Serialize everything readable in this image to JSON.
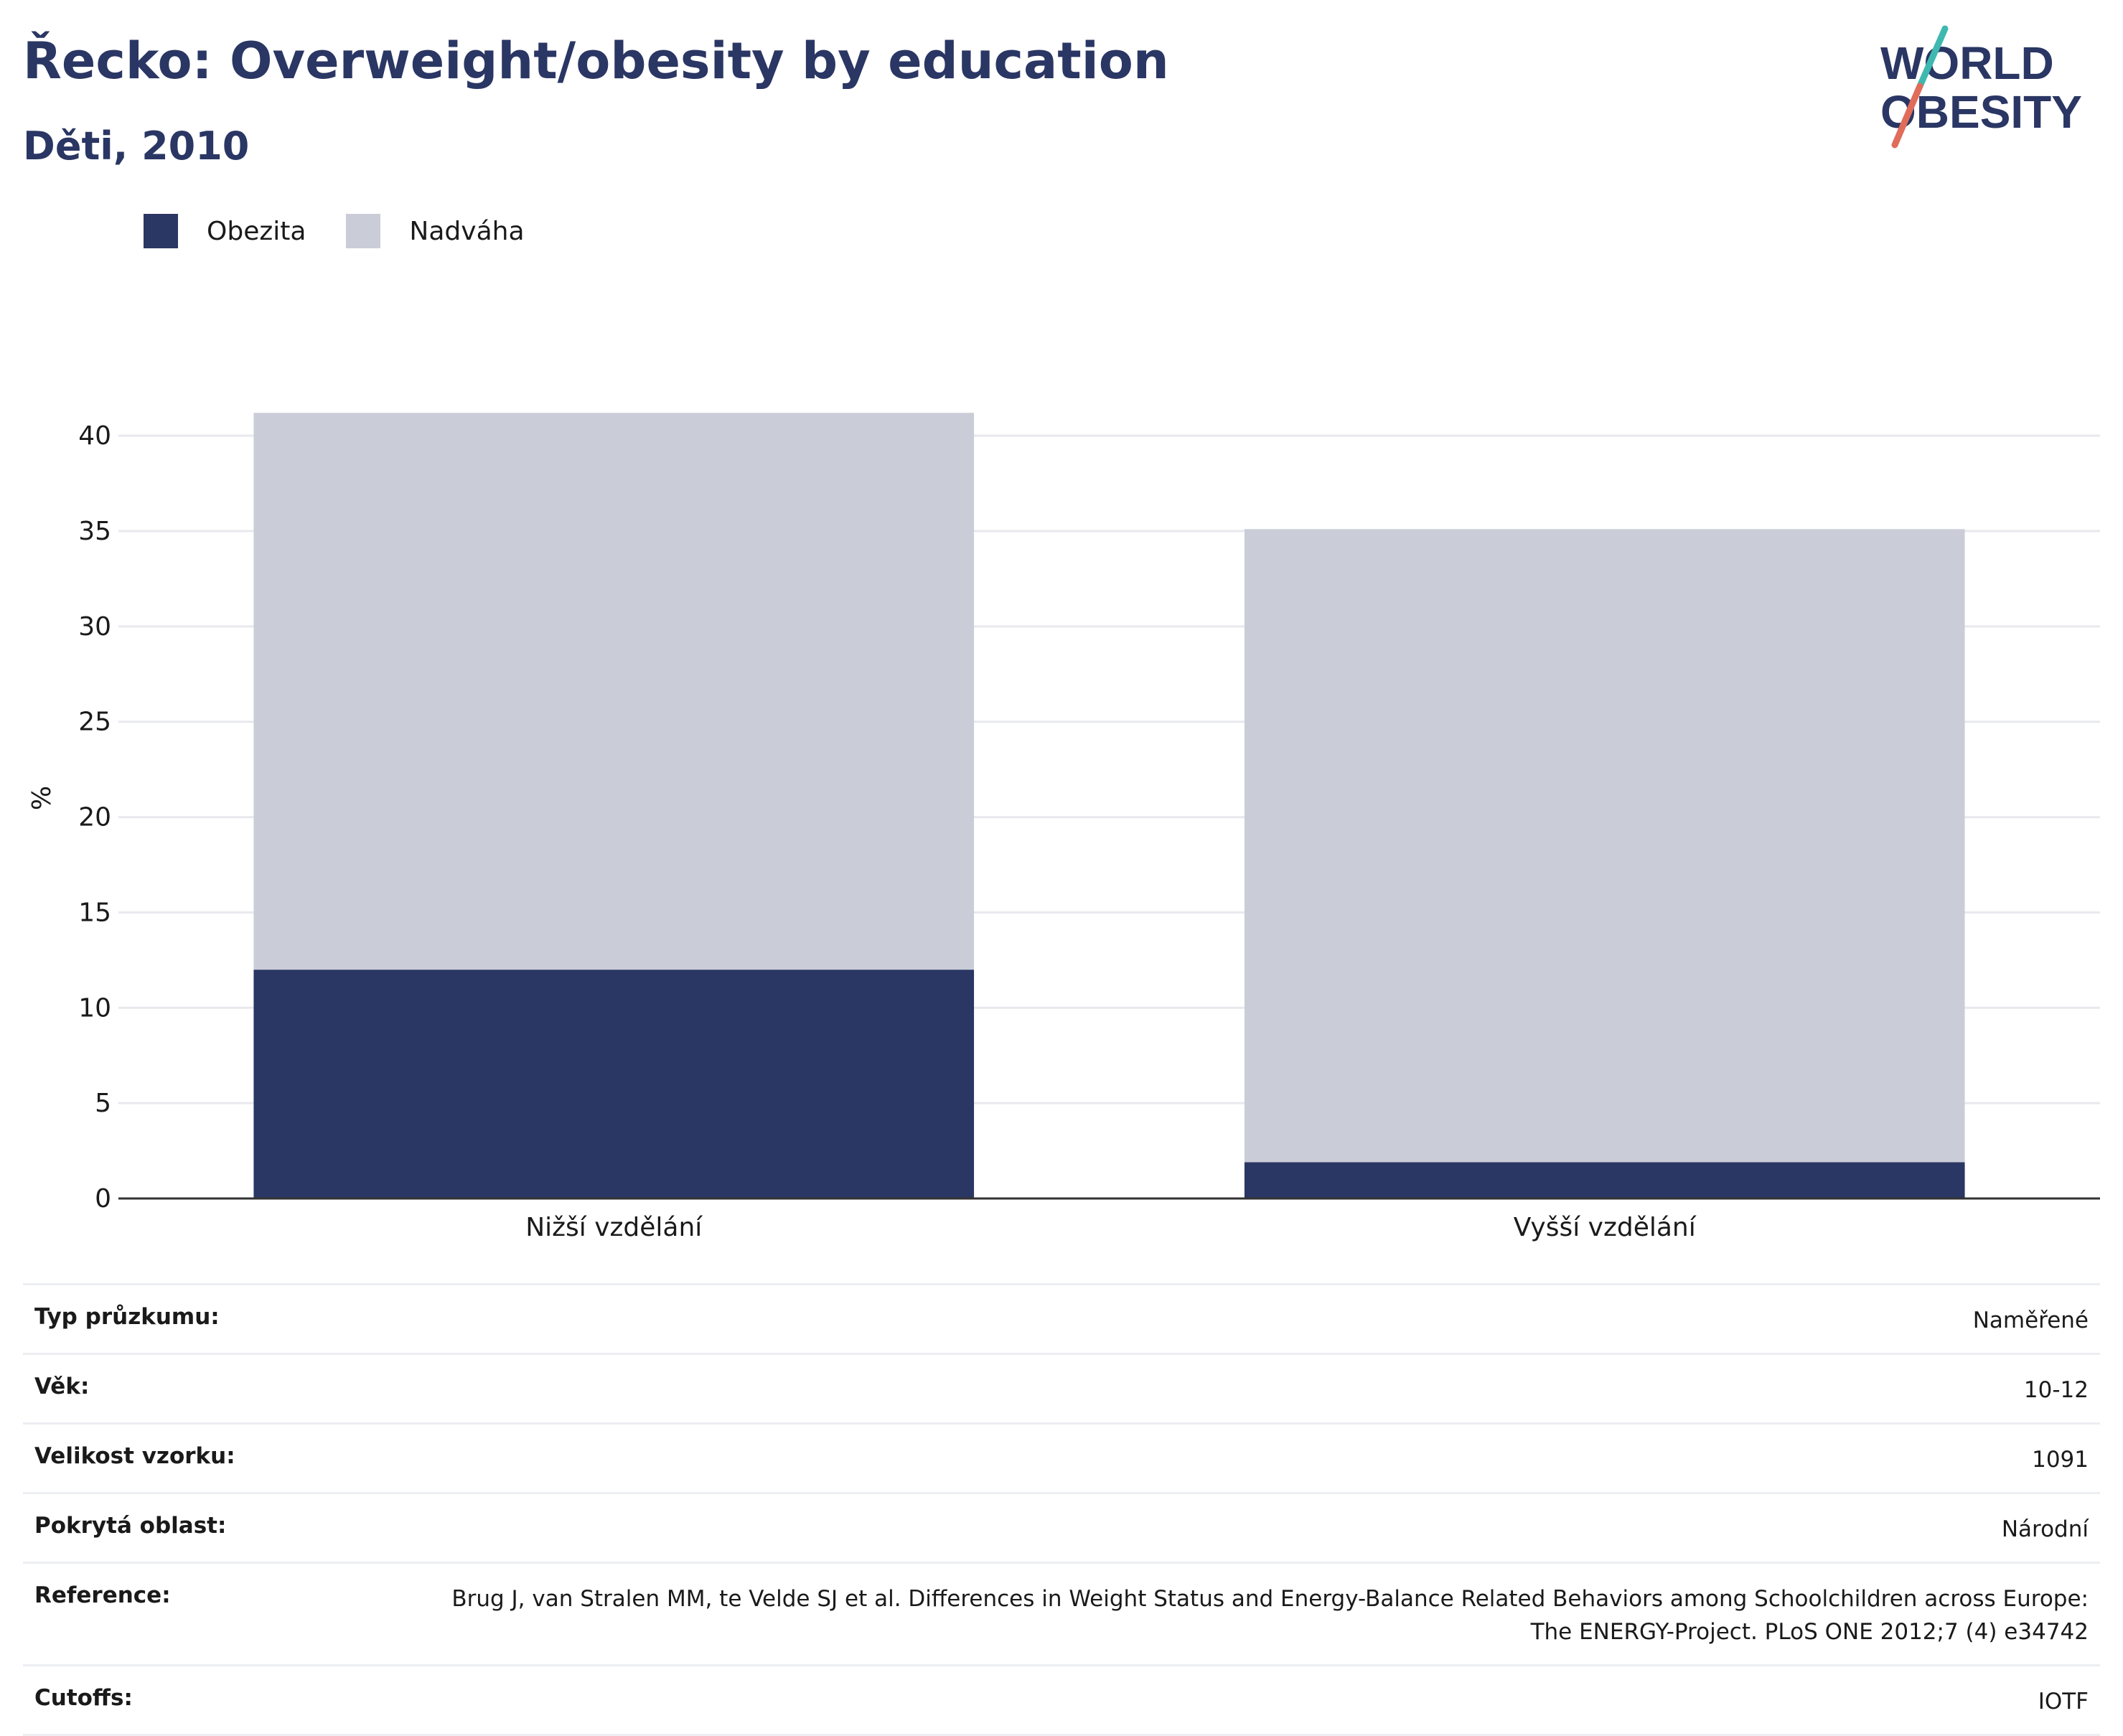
{
  "title": "Řecko: Overweight/obesity by education",
  "subtitle": "Děti, 2010",
  "logo": {
    "line1": "WORLD",
    "line2": "OBESITY"
  },
  "colors": {
    "obesity": "#2a3663",
    "overweight": "#cacdd8",
    "accent_teal": "#3fb8b0",
    "accent_coral": "#e06c5a",
    "title": "#2a3663"
  },
  "chart_data": {
    "type": "bar",
    "stacked": true,
    "categories": [
      "Nižší vzdělání",
      "Vyšší vzdělání"
    ],
    "series": [
      {
        "name": "Obezita",
        "values": [
          12.0,
          1.9
        ]
      },
      {
        "name": "Nadváha",
        "values": [
          29.2,
          33.2
        ]
      }
    ],
    "ylabel": "%",
    "ylim": [
      0,
      42
    ],
    "yticks": [
      0,
      5,
      10,
      15,
      20,
      25,
      30,
      35,
      40
    ],
    "grid": true,
    "legend": "top-left"
  },
  "meta": [
    {
      "label": "Typ průzkumu:",
      "value": "Naměřené"
    },
    {
      "label": "Věk:",
      "value": "10-12"
    },
    {
      "label": "Velikost vzorku:",
      "value": "1091"
    },
    {
      "label": "Pokrytá oblast:",
      "value": "Národní"
    },
    {
      "label": "Reference:",
      "value": "Brug J, van Stralen MM, te Velde SJ et al. Differences in Weight Status and Energy-Balance Related Behaviors among Schoolchildren across Europe: The ENERGY-Project. PLoS ONE 2012;7 (4) e34742"
    },
    {
      "label": "Cutoffs:",
      "value": "IOTF"
    }
  ]
}
